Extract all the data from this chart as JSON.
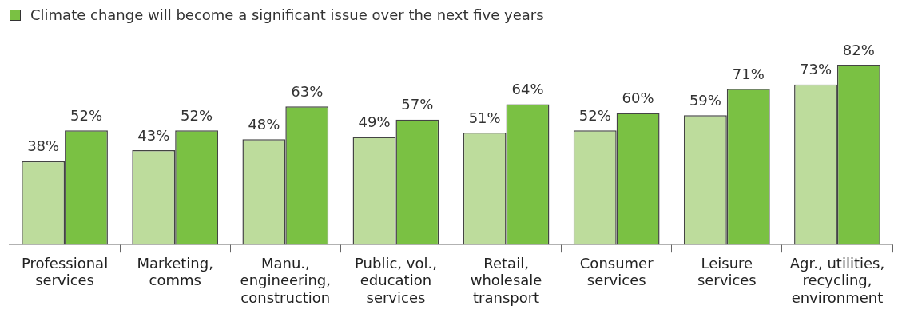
{
  "chart_data": {
    "type": "bar",
    "categories": [
      "Professional\nservices",
      "Marketing,\ncomms",
      "Manu.,\nengineering,\nconstruction",
      "Public, vol.,\neducation\nservices",
      "Retail,\nwholesale\ntransport",
      "Consumer\nservices",
      "Leisure\nservices",
      "Agr., utilities,\nrecycling,\nenvironment"
    ],
    "series": [
      {
        "color": "#bddc9c",
        "values": [
          38,
          43,
          48,
          49,
          51,
          52,
          59,
          73
        ],
        "value_labels": [
          "38%",
          "43%",
          "48%",
          "49%",
          "51%",
          "52%",
          "59%",
          "73%"
        ]
      },
      {
        "name": "Climate change will become a significant issue over the next five years",
        "color": "#7ac143",
        "values": [
          52,
          52,
          63,
          57,
          64,
          60,
          71,
          82
        ],
        "value_labels": [
          "52%",
          "52%",
          "63%",
          "57%",
          "64%",
          "60%",
          "71%",
          "82%"
        ]
      }
    ],
    "legend": "top left",
    "grid": false
  }
}
